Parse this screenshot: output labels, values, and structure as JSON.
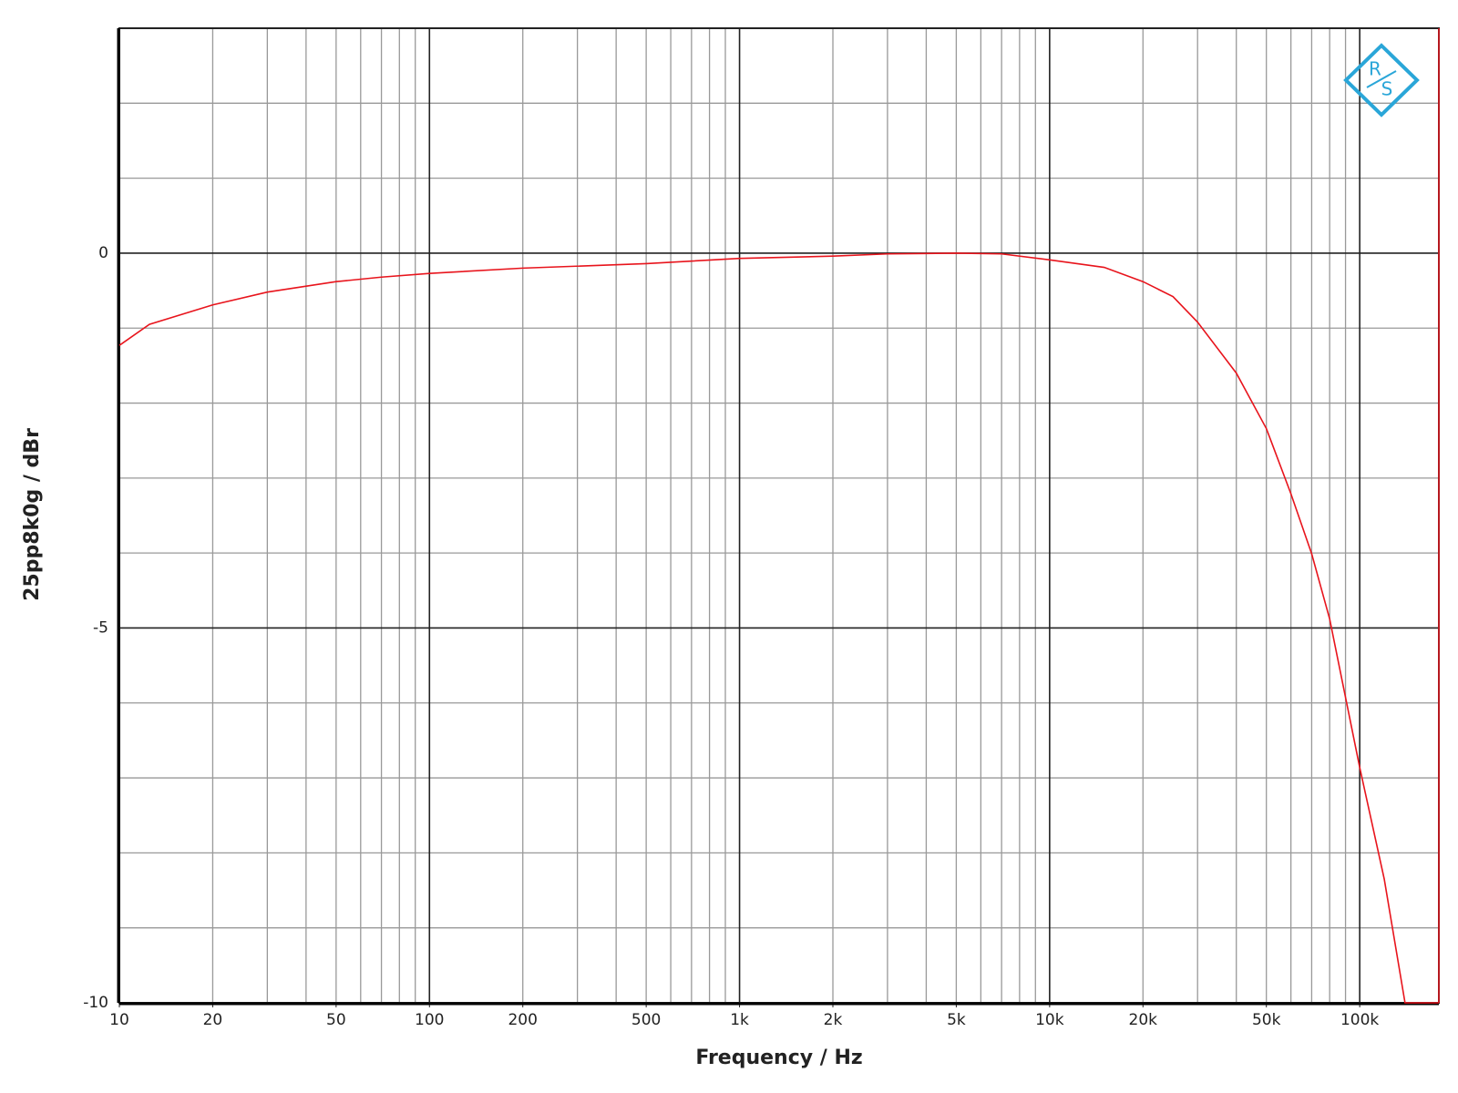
{
  "chart_data": {
    "type": "line",
    "x_label": "Frequency / Hz",
    "y_label": "25pp8k0g / dBr",
    "logo": {
      "top": "R",
      "bottom": "S"
    },
    "xscale": "log",
    "grid": true,
    "xlim": [
      10,
      180000
    ],
    "ylim": [
      -10,
      3
    ],
    "xticks": [
      10,
      20,
      50,
      100,
      200,
      500,
      {
        "value": 1000,
        "label": "1k"
      },
      {
        "value": 2000,
        "label": "2k"
      },
      {
        "value": 5000,
        "label": "5k"
      },
      {
        "value": 10000,
        "label": "10k"
      },
      {
        "value": 20000,
        "label": "20k"
      },
      {
        "value": 50000,
        "label": "50k"
      },
      {
        "value": 100000,
        "label": "100k"
      }
    ],
    "yticks": [
      -10,
      -5,
      0
    ],
    "yminorticks": [
      -9,
      -8,
      -7,
      -6,
      -4,
      -3,
      -2,
      -1,
      1,
      2
    ],
    "x": [
      10,
      12.5,
      20,
      30,
      50,
      70,
      100,
      200,
      500,
      1000,
      2000,
      3000,
      5000,
      7000,
      10000,
      15000,
      20000,
      25000,
      30000,
      40000,
      50000,
      60000,
      70000,
      80000,
      100000,
      120000,
      140000,
      180000
    ],
    "series": [
      {
        "color": "#e8141c",
        "values": [
          -1.23,
          -0.95,
          -0.69,
          -0.52,
          -0.38,
          -0.32,
          -0.27,
          -0.2,
          -0.14,
          -0.07,
          -0.04,
          -0.01,
          0,
          -0.01,
          -0.09,
          -0.19,
          -0.38,
          -0.58,
          -0.92,
          -1.6,
          -2.34,
          -3.21,
          -4.01,
          -4.88,
          -6.86,
          -8.35,
          -10,
          -10
        ]
      }
    ]
  }
}
